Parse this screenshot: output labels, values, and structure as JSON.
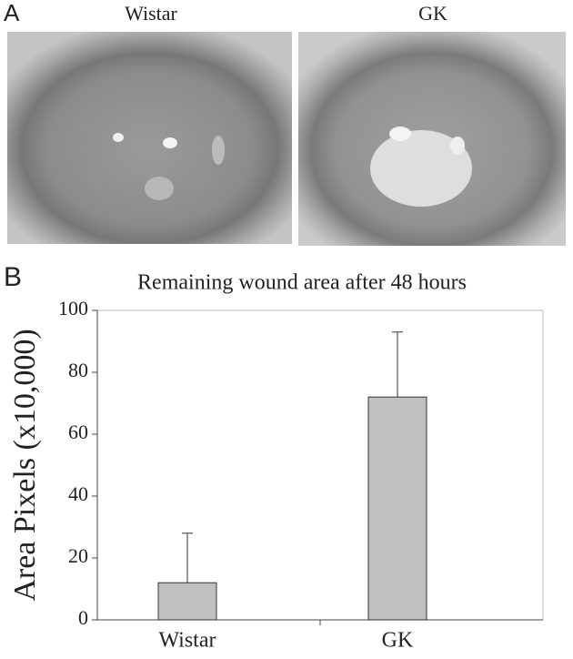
{
  "panel_a": {
    "label": "A",
    "captions": [
      "Wistar",
      "GK"
    ]
  },
  "panel_b_label": "B",
  "chart_data": {
    "type": "bar",
    "title": "Remaining wound area after 48 hours",
    "y_label": "Area Pixels (x10,000)",
    "categories": [
      "Wistar",
      "GK"
    ],
    "values": [
      12,
      72
    ],
    "errors": [
      16,
      21
    ],
    "color": "#c0c0c0",
    "ylim": [
      0,
      100
    ],
    "yticks": [
      0,
      20,
      40,
      60,
      80,
      100
    ],
    "grid": false
  }
}
